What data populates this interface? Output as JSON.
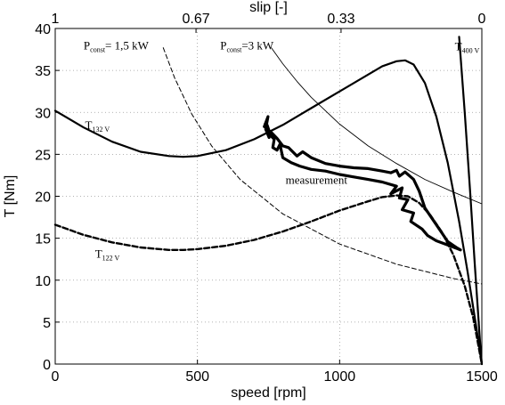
{
  "chart_data": {
    "type": "line",
    "xlabel": "speed [rpm]",
    "ylabel": "T [Nm]",
    "top_xlabel": "slip [-]",
    "xlim": [
      0,
      1500
    ],
    "ylim": [
      0,
      40
    ],
    "grid": true,
    "x_ticks": [
      {
        "value": 0,
        "label": "0"
      },
      {
        "value": 500,
        "label": "500"
      },
      {
        "value": 1000,
        "label": "1000"
      },
      {
        "value": 1500,
        "label": "1500"
      }
    ],
    "y_ticks": [
      {
        "value": 0,
        "label": "0"
      },
      {
        "value": 5,
        "label": "5"
      },
      {
        "value": 10,
        "label": "10"
      },
      {
        "value": 15,
        "label": "15"
      },
      {
        "value": 20,
        "label": "20"
      },
      {
        "value": 25,
        "label": "25"
      },
      {
        "value": 30,
        "label": "30"
      },
      {
        "value": 35,
        "label": "35"
      },
      {
        "value": 40,
        "label": "40"
      }
    ],
    "top_ticks": [
      {
        "value": 0,
        "label": "1"
      },
      {
        "value": 495,
        "label": "0.67"
      },
      {
        "value": 1005,
        "label": "0.33"
      },
      {
        "value": 1500,
        "label": "0"
      }
    ],
    "annotations": [
      {
        "main": "P",
        "sub": "const",
        "rest": "= 1,5 kW",
        "x": 100,
        "y": 37.5
      },
      {
        "main": "P",
        "sub": "const",
        "rest": "=3 kW",
        "x": 580,
        "y": 37.5
      },
      {
        "main": "T",
        "sub": "400 V",
        "rest": "",
        "x": 1405,
        "y": 37.4
      },
      {
        "main": "T",
        "sub": "132 V",
        "rest": "",
        "x": 105,
        "y": 28.0
      },
      {
        "main": "T",
        "sub": "122 V",
        "rest": "",
        "x": 140,
        "y": 12.7
      },
      {
        "main": "measurement",
        "sub": "",
        "rest": "",
        "x": 810,
        "y": 21.5
      }
    ],
    "series": [
      {
        "id": "T_400V",
        "style": "solid-thick",
        "x": [
          1420,
          1440,
          1460,
          1475,
          1485,
          1492,
          1497,
          1500
        ],
        "y": [
          39.0,
          30.0,
          20.0,
          12.0,
          7.0,
          3.5,
          1.2,
          0
        ]
      },
      {
        "id": "T_132V",
        "style": "solid-thick",
        "x": [
          0,
          50,
          100,
          200,
          300,
          400,
          450,
          500,
          600,
          700,
          800,
          900,
          1000,
          1100,
          1150,
          1200,
          1230,
          1260,
          1300,
          1340,
          1380,
          1420,
          1450,
          1480,
          1500
        ],
        "y": [
          30.2,
          29.2,
          28.2,
          26.5,
          25.3,
          24.8,
          24.7,
          24.8,
          25.5,
          26.8,
          28.5,
          30.5,
          32.5,
          34.5,
          35.5,
          36.1,
          36.2,
          35.7,
          33.5,
          29.5,
          24.0,
          17.0,
          11.0,
          4.5,
          0
        ]
      },
      {
        "id": "T_122V",
        "style": "dashed-thick",
        "x": [
          0,
          100,
          200,
          300,
          400,
          450,
          500,
          600,
          700,
          800,
          900,
          1000,
          1100,
          1150,
          1200,
          1240,
          1280,
          1320,
          1360,
          1400,
          1440,
          1470,
          1500
        ],
        "y": [
          16.6,
          15.4,
          14.5,
          13.9,
          13.6,
          13.6,
          13.7,
          14.1,
          14.8,
          15.8,
          17.0,
          18.3,
          19.4,
          19.9,
          20.1,
          20.0,
          19.2,
          17.7,
          15.7,
          13.0,
          9.3,
          5.5,
          0
        ]
      },
      {
        "id": "P_const_1.5kW",
        "style": "dashed-thin",
        "x": [
          380,
          420,
          480,
          550,
          650,
          800,
          1000,
          1200,
          1400,
          1500
        ],
        "y": [
          37.7,
          34.1,
          29.8,
          26.0,
          22.0,
          17.9,
          14.3,
          11.9,
          10.2,
          9.55
        ]
      },
      {
        "id": "P_const_3kW",
        "style": "solid-thin",
        "x": [
          760,
          800,
          850,
          900,
          1000,
          1100,
          1200,
          1300,
          1400,
          1500
        ],
        "y": [
          37.7,
          35.8,
          33.7,
          31.8,
          28.6,
          26.0,
          23.9,
          22.0,
          20.5,
          19.1
        ]
      },
      {
        "id": "measurement",
        "style": "measurement",
        "x": [
          735,
          748,
          740,
          752,
          745,
          758,
          770,
          765,
          780,
          790,
          800,
          830,
          860,
          900,
          950,
          1000,
          1050,
          1100,
          1150,
          1200,
          1180,
          1220,
          1210,
          1240,
          1220,
          1260,
          1250,
          1290,
          1310,
          1340,
          1380,
          1410,
          1425,
          1410,
          1380,
          1340,
          1300,
          1280,
          1260,
          1240,
          1230,
          1210,
          1200,
          1180,
          1150,
          1100,
          1050,
          1000,
          950,
          900,
          870,
          850,
          820,
          800,
          780,
          760,
          745,
          738
        ],
        "y": [
          28.3,
          29.5,
          28.0,
          27.0,
          28.5,
          27.2,
          26.8,
          25.8,
          25.5,
          26.2,
          24.6,
          24.0,
          23.6,
          23.2,
          23.0,
          22.6,
          22.3,
          22.0,
          21.7,
          21.2,
          20.3,
          21.0,
          19.8,
          19.6,
          18.4,
          18.0,
          17.0,
          16.1,
          15.3,
          14.7,
          14.2,
          13.8,
          13.6,
          13.9,
          14.6,
          16.6,
          18.6,
          20.6,
          22.0,
          22.6,
          22.9,
          22.4,
          23.1,
          22.8,
          23.0,
          23.3,
          23.4,
          23.6,
          23.9,
          24.6,
          25.3,
          24.8,
          25.8,
          26.0,
          26.9,
          27.6,
          28.0,
          28.6
        ]
      }
    ]
  }
}
